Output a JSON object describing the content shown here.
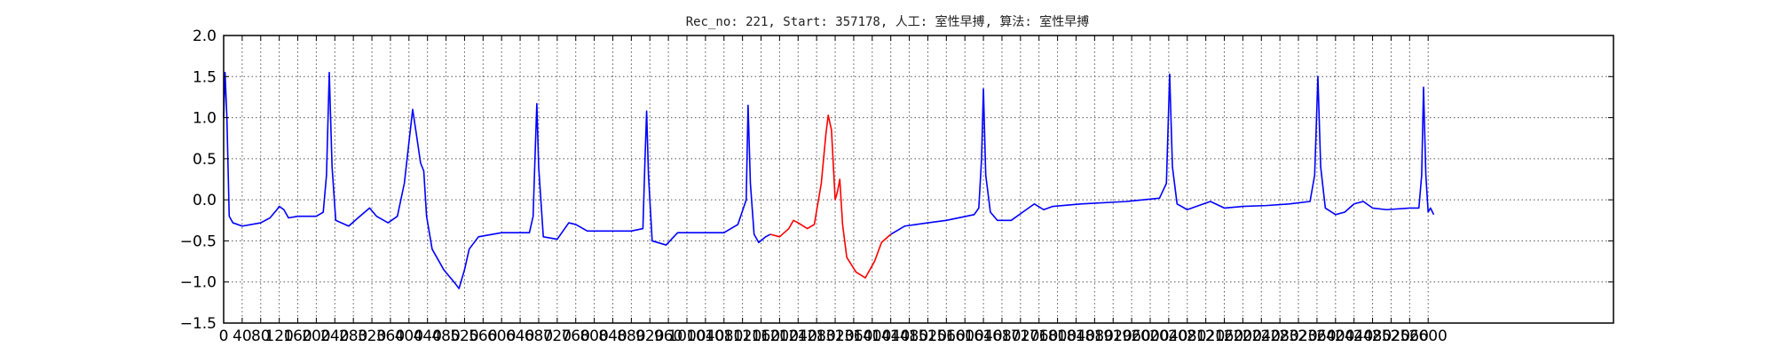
{
  "chart_data": {
    "type": "line",
    "title": "Rec_no: 221, Start: 357178, 人工: 室性早搏, 算法: 室性早搏",
    "xlabel": "",
    "ylabel": "",
    "xlim": [
      0,
      3000
    ],
    "ylim": [
      -1.5,
      2.0
    ],
    "yticks": [
      "−1.5",
      "−1.0",
      "−0.5",
      "0.0",
      "0.5",
      "1.0",
      "1.5",
      "2.0"
    ],
    "xticks": [
      "0",
      "40",
      "80",
      "120",
      "160",
      "200",
      "240",
      "280",
      "320",
      "360",
      "400",
      "440",
      "480",
      "520",
      "560",
      "600",
      "640",
      "680",
      "720",
      "760",
      "800",
      "840",
      "880",
      "920",
      "960",
      "1000",
      "1040",
      "1080",
      "1120",
      "1160",
      "1200",
      "1240",
      "1280",
      "1320",
      "1360",
      "1400",
      "1440",
      "1480",
      "1520",
      "1560",
      "1600",
      "1640",
      "1680",
      "1720",
      "1760",
      "1800",
      "1840",
      "1880",
      "1920",
      "1960",
      "2000",
      "2040",
      "2080",
      "2120",
      "2160",
      "2200",
      "2240",
      "2280",
      "2320",
      "2360",
      "2400",
      "2440",
      "2480",
      "2520",
      "2560",
      "2600"
    ],
    "grid": true,
    "grid_style": "dotted",
    "series": [
      {
        "color": "#0000ff",
        "points": [
          [
            0,
            1.0
          ],
          [
            3,
            1.55
          ],
          [
            7,
            1.0
          ],
          [
            12,
            -0.2
          ],
          [
            20,
            -0.28
          ],
          [
            40,
            -0.32
          ],
          [
            80,
            -0.28
          ],
          [
            100,
            -0.22
          ],
          [
            115,
            -0.12
          ],
          [
            120,
            -0.08
          ],
          [
            130,
            -0.12
          ],
          [
            140,
            -0.22
          ],
          [
            160,
            -0.2
          ],
          [
            200,
            -0.2
          ],
          [
            215,
            -0.15
          ],
          [
            222,
            0.3
          ],
          [
            228,
            1.55
          ],
          [
            234,
            0.4
          ],
          [
            242,
            -0.25
          ],
          [
            270,
            -0.32
          ],
          [
            290,
            -0.22
          ],
          [
            315,
            -0.1
          ],
          [
            330,
            -0.2
          ],
          [
            355,
            -0.28
          ],
          [
            375,
            -0.2
          ],
          [
            390,
            0.2
          ],
          [
            400,
            0.7
          ],
          [
            408,
            1.1
          ],
          [
            416,
            0.8
          ],
          [
            425,
            0.45
          ],
          [
            432,
            0.35
          ],
          [
            438,
            -0.2
          ],
          [
            450,
            -0.6
          ],
          [
            475,
            -0.85
          ],
          [
            500,
            -1.02
          ],
          [
            508,
            -1.08
          ],
          [
            520,
            -0.85
          ],
          [
            530,
            -0.6
          ],
          [
            550,
            -0.45
          ],
          [
            600,
            -0.4
          ],
          [
            660,
            -0.4
          ],
          [
            668,
            -0.2
          ],
          [
            672,
            0.5
          ],
          [
            676,
            1.17
          ],
          [
            680,
            0.4
          ],
          [
            690,
            -0.45
          ],
          [
            720,
            -0.48
          ],
          [
            745,
            -0.28
          ],
          [
            760,
            -0.3
          ],
          [
            785,
            -0.38
          ],
          [
            880,
            -0.38
          ],
          [
            905,
            -0.35
          ],
          [
            909,
            0.4
          ],
          [
            913,
            1.08
          ],
          [
            917,
            0.3
          ],
          [
            925,
            -0.5
          ],
          [
            955,
            -0.55
          ],
          [
            980,
            -0.4
          ],
          [
            1080,
            -0.4
          ],
          [
            1110,
            -0.3
          ],
          [
            1128,
            0.0
          ],
          [
            1132,
            1.15
          ],
          [
            1137,
            0.2
          ],
          [
            1145,
            -0.42
          ],
          [
            1155,
            -0.52
          ],
          [
            1170,
            -0.45
          ],
          [
            1180,
            -0.42
          ]
        ]
      },
      {
        "color": "#ff0000",
        "points": [
          [
            1180,
            -0.42
          ],
          [
            1200,
            -0.45
          ],
          [
            1220,
            -0.35
          ],
          [
            1230,
            -0.25
          ],
          [
            1240,
            -0.28
          ],
          [
            1260,
            -0.35
          ],
          [
            1275,
            -0.3
          ],
          [
            1290,
            0.2
          ],
          [
            1300,
            0.8
          ],
          [
            1305,
            1.03
          ],
          [
            1312,
            0.85
          ],
          [
            1320,
            0.0
          ],
          [
            1325,
            0.1
          ],
          [
            1330,
            0.25
          ],
          [
            1336,
            -0.3
          ],
          [
            1345,
            -0.7
          ],
          [
            1365,
            -0.88
          ],
          [
            1385,
            -0.95
          ],
          [
            1405,
            -0.75
          ],
          [
            1420,
            -0.52
          ],
          [
            1440,
            -0.42
          ]
        ]
      },
      {
        "color": "#0000ff",
        "points": [
          [
            1440,
            -0.42
          ],
          [
            1470,
            -0.32
          ],
          [
            1520,
            -0.28
          ],
          [
            1560,
            -0.25
          ],
          [
            1620,
            -0.18
          ],
          [
            1630,
            -0.1
          ],
          [
            1636,
            0.5
          ],
          [
            1640,
            1.35
          ],
          [
            1645,
            0.3
          ],
          [
            1655,
            -0.15
          ],
          [
            1670,
            -0.25
          ],
          [
            1700,
            -0.25
          ],
          [
            1725,
            -0.15
          ],
          [
            1750,
            -0.05
          ],
          [
            1770,
            -0.12
          ],
          [
            1790,
            -0.08
          ],
          [
            1850,
            -0.05
          ],
          [
            1950,
            -0.02
          ],
          [
            2020,
            0.02
          ],
          [
            2035,
            0.2
          ],
          [
            2042,
            1.53
          ],
          [
            2048,
            0.4
          ],
          [
            2058,
            -0.05
          ],
          [
            2080,
            -0.12
          ],
          [
            2100,
            -0.08
          ],
          [
            2130,
            -0.02
          ],
          [
            2160,
            -0.1
          ],
          [
            2200,
            -0.08
          ],
          [
            2250,
            -0.07
          ],
          [
            2300,
            -0.05
          ],
          [
            2345,
            -0.02
          ],
          [
            2355,
            0.3
          ],
          [
            2362,
            1.5
          ],
          [
            2368,
            0.4
          ],
          [
            2378,
            -0.1
          ],
          [
            2400,
            -0.18
          ],
          [
            2420,
            -0.15
          ],
          [
            2440,
            -0.05
          ],
          [
            2460,
            -0.02
          ],
          [
            2480,
            -0.1
          ],
          [
            2510,
            -0.12
          ],
          [
            2560,
            -0.1
          ],
          [
            2580,
            -0.1
          ],
          [
            2586,
            0.3
          ],
          [
            2590,
            1.37
          ],
          [
            2595,
            0.3
          ],
          [
            2600,
            -0.15
          ],
          [
            2605,
            -0.1
          ],
          [
            2612,
            -0.18
          ]
        ]
      }
    ]
  }
}
